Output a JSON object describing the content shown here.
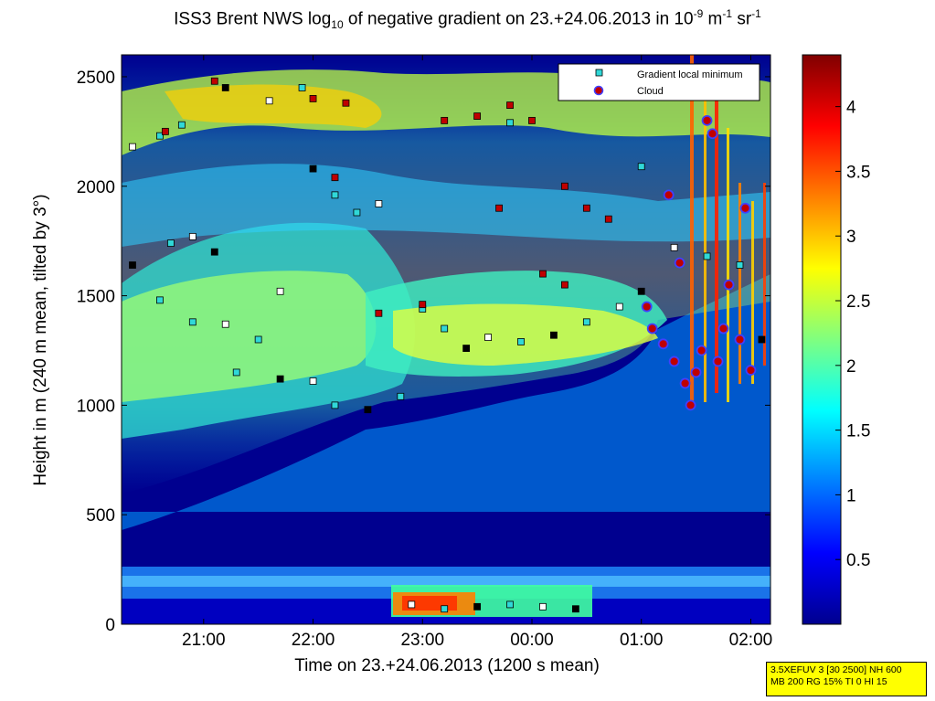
{
  "chart_data": {
    "type": "heatmap",
    "title_parts": {
      "pre": "ISS3 Brent NWS log",
      "sub": "10",
      "mid": " of negative gradient on 23.+24.06.2013 in 10",
      "sup1": "-9",
      "mid2": " m",
      "sup2": "-1",
      "mid3": " sr",
      "sup3": "-1"
    },
    "xlabel": "Time on 23.+24.06.2013 (1200 s mean)",
    "ylabel": "Height in m (240 m mean, tilted by 3°)",
    "xlim_hours": [
      20.25,
      26.18
    ],
    "ylim": [
      0,
      2600
    ],
    "x_ticks": [
      {
        "label": "21:00",
        "value": 21
      },
      {
        "label": "22:00",
        "value": 22
      },
      {
        "label": "23:00",
        "value": 23
      },
      {
        "label": "00:00",
        "value": 24
      },
      {
        "label": "01:00",
        "value": 25
      },
      {
        "label": "02:00",
        "value": 26
      }
    ],
    "y_ticks": [
      {
        "label": "0",
        "value": 0
      },
      {
        "label": "500",
        "value": 500
      },
      {
        "label": "1000",
        "value": 1000
      },
      {
        "label": "1500",
        "value": 1500
      },
      {
        "label": "2000",
        "value": 2000
      },
      {
        "label": "2500",
        "value": 2500
      }
    ],
    "colorbar": {
      "range": [
        0,
        4.4
      ],
      "ticks": [
        {
          "label": "0.5",
          "value": 0.5
        },
        {
          "label": "1",
          "value": 1
        },
        {
          "label": "1.5",
          "value": 1.5
        },
        {
          "label": "2",
          "value": 2
        },
        {
          "label": "2.5",
          "value": 2.5
        },
        {
          "label": "3",
          "value": 3
        },
        {
          "label": "3.5",
          "value": 3.5
        },
        {
          "label": "4",
          "value": 4
        }
      ]
    },
    "legend": {
      "position": "top-right",
      "entries": [
        {
          "label": "Gradient local minimum",
          "color": "#30d8d8",
          "marker": "square"
        },
        {
          "label": "Cloud",
          "color": "#c00000",
          "edge": "#4040ff",
          "marker": "circle"
        }
      ]
    },
    "layers": [
      {
        "name": "surface",
        "bottom": 0,
        "top": 250,
        "value": 2.0
      },
      {
        "name": "residual layer",
        "from_hours": 20.25,
        "to_hours": 26.18,
        "bottom_m": [
          650,
          1400
        ],
        "top_m": [
          1600,
          1300
        ],
        "value": 2.2
      }
    ],
    "gradient_minima": [
      {
        "x": 20.35,
        "y": 2180
      },
      {
        "x": 20.6,
        "y": 2230
      },
      {
        "x": 20.8,
        "y": 2280
      },
      {
        "x": 21.2,
        "y": 2450
      },
      {
        "x": 21.6,
        "y": 2390
      },
      {
        "x": 21.9,
        "y": 2450
      },
      {
        "x": 20.35,
        "y": 1640
      },
      {
        "x": 20.7,
        "y": 1740
      },
      {
        "x": 20.9,
        "y": 1770
      },
      {
        "x": 21.1,
        "y": 1700
      },
      {
        "x": 20.6,
        "y": 1480
      },
      {
        "x": 20.9,
        "y": 1380
      },
      {
        "x": 21.2,
        "y": 1370
      },
      {
        "x": 21.5,
        "y": 1300
      },
      {
        "x": 21.3,
        "y": 1150
      },
      {
        "x": 21.7,
        "y": 1120
      },
      {
        "x": 22.0,
        "y": 1110
      },
      {
        "x": 22.2,
        "y": 1000
      },
      {
        "x": 22.5,
        "y": 980
      },
      {
        "x": 22.8,
        "y": 1040
      },
      {
        "x": 21.7,
        "y": 1520
      },
      {
        "x": 22.0,
        "y": 2080
      },
      {
        "x": 22.2,
        "y": 1960
      },
      {
        "x": 22.4,
        "y": 1880
      },
      {
        "x": 22.6,
        "y": 1920
      },
      {
        "x": 23.0,
        "y": 1440
      },
      {
        "x": 23.2,
        "y": 1350
      },
      {
        "x": 23.4,
        "y": 1260
      },
      {
        "x": 23.6,
        "y": 1310
      },
      {
        "x": 23.9,
        "y": 1290
      },
      {
        "x": 24.2,
        "y": 1320
      },
      {
        "x": 24.5,
        "y": 1380
      },
      {
        "x": 24.8,
        "y": 1450
      },
      {
        "x": 25.0,
        "y": 1520
      },
      {
        "x": 25.0,
        "y": 2090
      },
      {
        "x": 23.8,
        "y": 2290
      },
      {
        "x": 25.3,
        "y": 1720
      },
      {
        "x": 25.6,
        "y": 1680
      },
      {
        "x": 25.9,
        "y": 1640
      },
      {
        "x": 26.1,
        "y": 1300
      },
      {
        "x": 22.9,
        "y": 90
      },
      {
        "x": 23.2,
        "y": 70
      },
      {
        "x": 23.5,
        "y": 80
      },
      {
        "x": 23.8,
        "y": 90
      },
      {
        "x": 24.1,
        "y": 80
      },
      {
        "x": 24.4,
        "y": 70
      }
    ],
    "clouds": [
      {
        "x": 25.05,
        "y": 1450
      },
      {
        "x": 25.1,
        "y": 1350
      },
      {
        "x": 25.2,
        "y": 1280
      },
      {
        "x": 25.25,
        "y": 1960
      },
      {
        "x": 25.3,
        "y": 1200
      },
      {
        "x": 25.4,
        "y": 1100
      },
      {
        "x": 25.45,
        "y": 1000
      },
      {
        "x": 25.5,
        "y": 1150
      },
      {
        "x": 25.55,
        "y": 1250
      },
      {
        "x": 25.6,
        "y": 2300
      },
      {
        "x": 25.65,
        "y": 2240
      },
      {
        "x": 25.7,
        "y": 1200
      },
      {
        "x": 25.75,
        "y": 1350
      },
      {
        "x": 25.8,
        "y": 1550
      },
      {
        "x": 25.9,
        "y": 1300
      },
      {
        "x": 25.95,
        "y": 1900
      },
      {
        "x": 26.0,
        "y": 1160
      },
      {
        "x": 25.35,
        "y": 1650
      }
    ],
    "cloud_squares_red": [
      {
        "x": 20.65,
        "y": 2250
      },
      {
        "x": 21.1,
        "y": 2480
      },
      {
        "x": 22.0,
        "y": 2400
      },
      {
        "x": 22.3,
        "y": 2380
      },
      {
        "x": 23.2,
        "y": 2300
      },
      {
        "x": 23.5,
        "y": 2320
      },
      {
        "x": 23.8,
        "y": 2370
      },
      {
        "x": 24.0,
        "y": 2300
      },
      {
        "x": 22.2,
        "y": 2040
      },
      {
        "x": 24.3,
        "y": 2000
      },
      {
        "x": 24.5,
        "y": 1900
      },
      {
        "x": 24.7,
        "y": 1850
      },
      {
        "x": 24.1,
        "y": 1600
      },
      {
        "x": 24.3,
        "y": 1550
      },
      {
        "x": 23.0,
        "y": 1460
      },
      {
        "x": 22.6,
        "y": 1420
      },
      {
        "x": 23.7,
        "y": 1900
      }
    ]
  },
  "infobox": {
    "line1": "3.5XEFUV 3 [30 2500] NH 600",
    "line2": "MB 200 RG 15% TI 0 HI 15"
  }
}
